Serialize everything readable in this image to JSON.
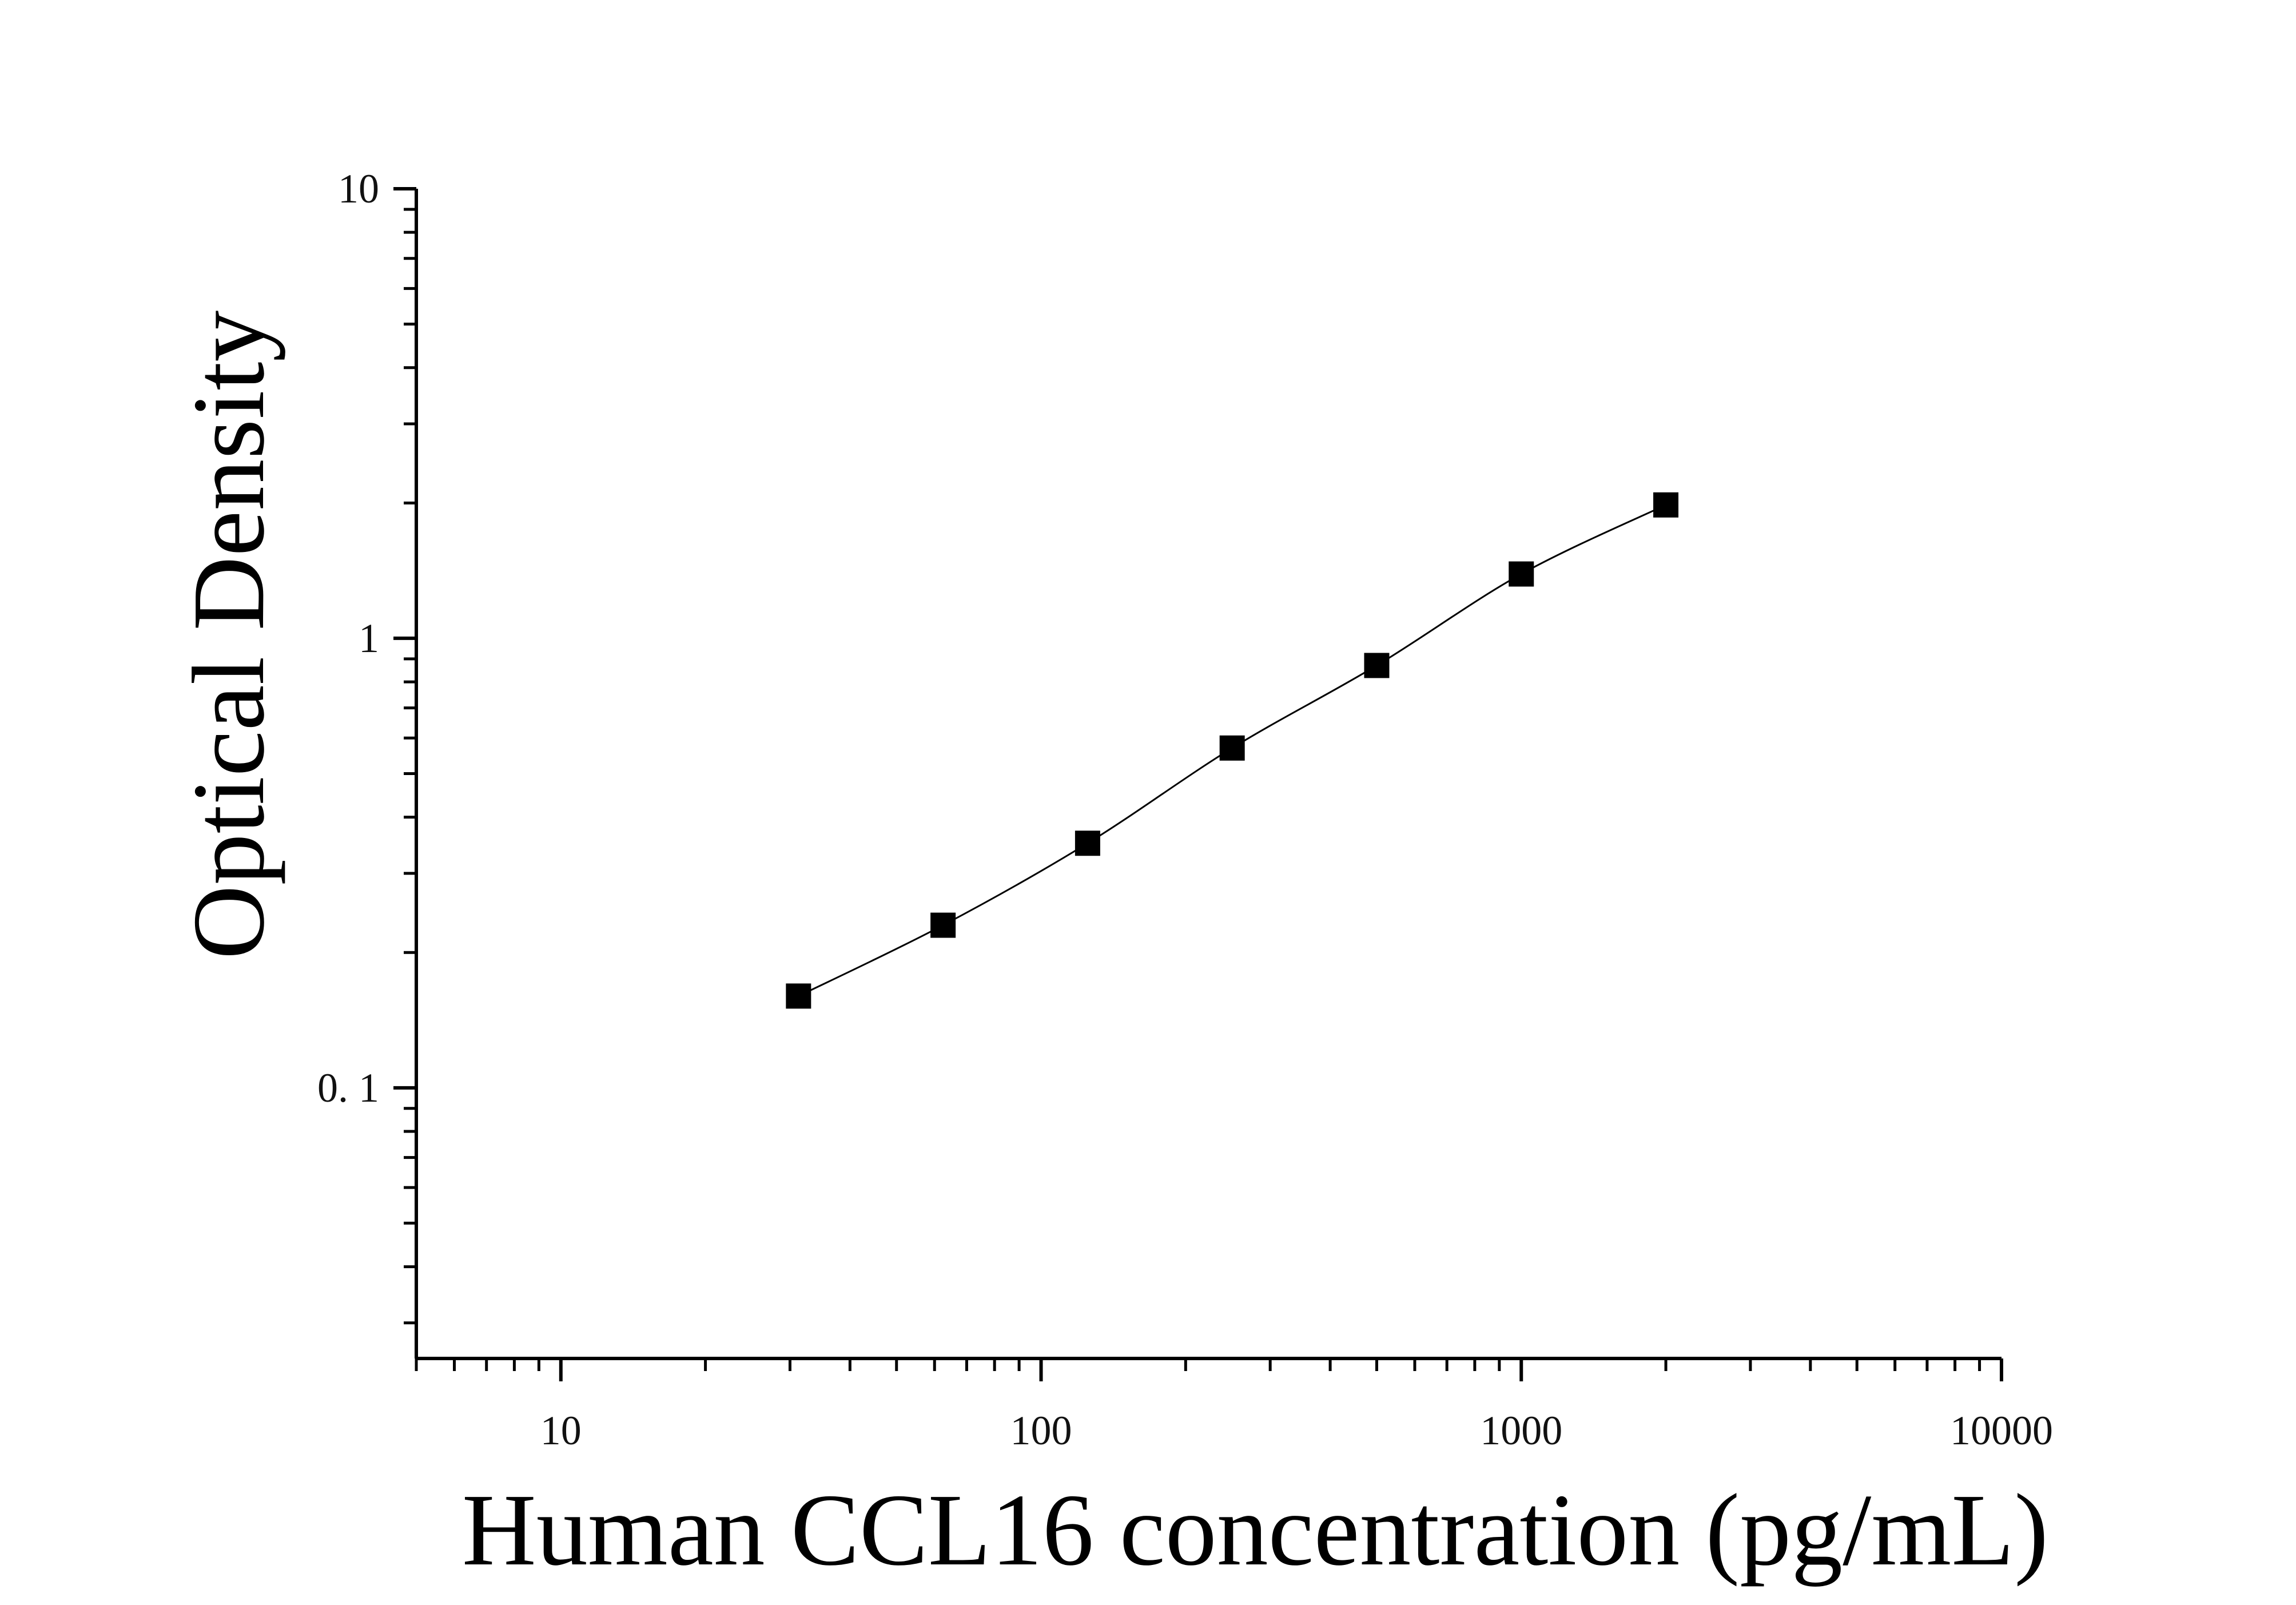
{
  "chart_data": {
    "type": "scatter",
    "xlabel": "Human CCL16 concentration (pg/mL)",
    "ylabel": "Optical Density",
    "xscale": "log",
    "yscale": "log",
    "xlim": [
      5,
      10000
    ],
    "ylim": [
      0.025,
      10
    ],
    "x_ticks": [
      {
        "value": 10,
        "label": "10"
      },
      {
        "value": 100,
        "label": "100"
      },
      {
        "value": 1000,
        "label": "1000"
      },
      {
        "value": 10000,
        "label": "10000"
      }
    ],
    "y_ticks": [
      {
        "value": 0.1,
        "label": "0. 1"
      },
      {
        "value": 1,
        "label": "1"
      },
      {
        "value": 10,
        "label": "10"
      }
    ],
    "grid": false,
    "legend": "none",
    "series": [
      {
        "x": [
          31.25,
          62.5,
          125,
          250,
          500,
          1000,
          2000
        ],
        "y": [
          0.16,
          0.23,
          0.35,
          0.57,
          0.87,
          1.39,
          1.98
        ],
        "marker": "square",
        "fit_line": "smooth curve",
        "color": "#000000"
      }
    ]
  }
}
